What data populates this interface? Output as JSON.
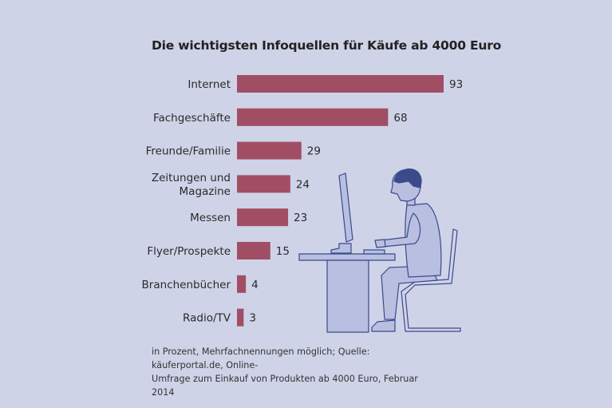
{
  "chart_data": {
    "type": "bar",
    "orientation": "horizontal",
    "title": "Die wichtigsten Infoquellen für Käufe ab 4000 Euro",
    "categories": [
      [
        "Internet"
      ],
      [
        "Fachgeschäfte"
      ],
      [
        "Freunde/Familie"
      ],
      [
        "Zeitungen und",
        "Magazine"
      ],
      [
        "Messen"
      ],
      [
        "Flyer/Prospekte"
      ],
      [
        "Branchenbücher"
      ],
      [
        "Radio/TV"
      ]
    ],
    "values": [
      93,
      68,
      29,
      24,
      23,
      15,
      4,
      3
    ],
    "xlim": [
      0,
      93
    ],
    "bar_color": "#a14e65",
    "grid": false
  },
  "footnote": {
    "line1": "in Prozent, Mehrfachnennungen möglich; Quelle: käuferportal.de, Online-",
    "line2": "Umfrage zum Einkauf von Produkten ab 4000 Euro, Februar 2014"
  },
  "colors": {
    "background": "#cfd3e8",
    "illustration_fill": "#b8bfe0",
    "illustration_stroke": "#3a4a8a"
  }
}
